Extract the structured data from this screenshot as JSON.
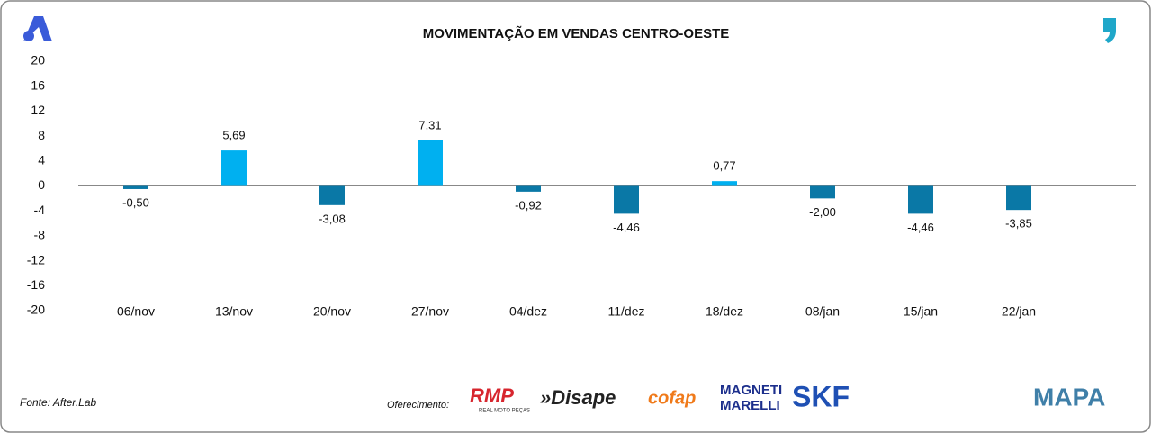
{
  "chart_data": {
    "type": "bar",
    "title": "MOVIMENTAÇÃO EM VENDAS CENTRO-OESTE",
    "categories": [
      "06/nov",
      "13/nov",
      "20/nov",
      "27/nov",
      "04/dez",
      "11/dez",
      "18/dez",
      "08/jan",
      "15/jan",
      "22/jan"
    ],
    "values": [
      -0.5,
      5.69,
      -3.08,
      7.31,
      -0.92,
      -4.46,
      0.77,
      -2.0,
      -4.46,
      -3.85
    ],
    "value_labels": [
      "-0,50",
      "5,69",
      "-3,08",
      "7,31",
      "-0,92",
      "-4,46",
      "0,77",
      "-2,00",
      "-4,46",
      "-3,85"
    ],
    "positive_color": "#00b0f0",
    "negative_color": "#0a78a6",
    "ylim": [
      -20,
      20
    ],
    "yticks": [
      -20,
      -16,
      -12,
      -8,
      -4,
      0,
      4,
      8,
      12,
      16,
      20
    ]
  },
  "footer": {
    "source": "Fonte: After.Lab",
    "sponsor_label": "Oferecimento:",
    "sponsors": [
      "RMP",
      "REAL MOTO PEÇAS",
      "»Disape",
      "cofap",
      "MAGNETI",
      "MARELLI",
      "SKF",
      "MAPA"
    ]
  }
}
